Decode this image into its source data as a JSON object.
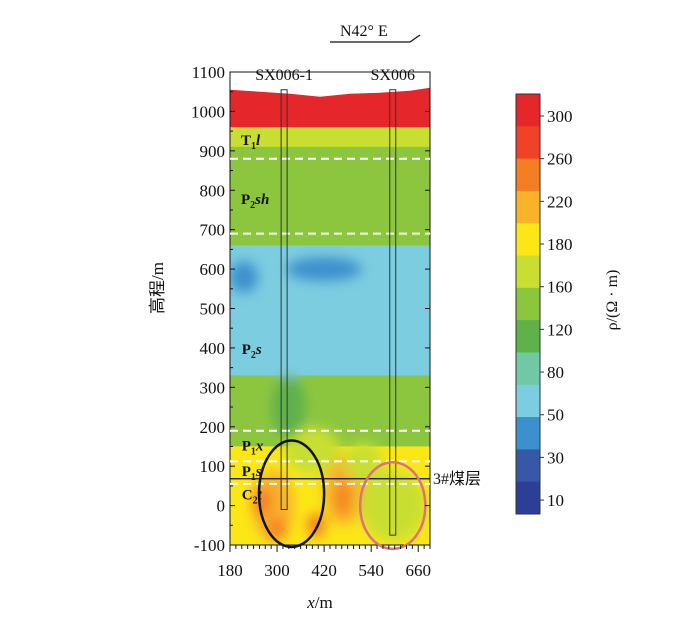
{
  "chart_data": {
    "type": "heatmap",
    "orientation": {
      "label": "N42° E",
      "arrow": "right"
    },
    "x_axis": {
      "label_var": "x",
      "label_unit": "/m",
      "range": [
        180,
        690
      ],
      "ticks": [
        "180",
        "300",
        "420",
        "540",
        "660"
      ],
      "tick_values": [
        180,
        300,
        420,
        540,
        660
      ]
    },
    "y_axis": {
      "label": "高程/m",
      "range": [
        -100,
        1100
      ],
      "ticks": [
        "1100",
        "1000",
        "900",
        "800",
        "700",
        "600",
        "500",
        "400",
        "300",
        "200",
        "100",
        "0",
        "-100"
      ],
      "tick_values": [
        1100,
        1000,
        900,
        800,
        700,
        600,
        500,
        400,
        300,
        200,
        100,
        0,
        -100
      ]
    },
    "boreholes": [
      {
        "name": "SX006-1",
        "x": 318,
        "top": 1055,
        "bottom": -10
      },
      {
        "name": "SX006",
        "x": 595,
        "top": 1055,
        "bottom": -75
      }
    ],
    "boundaries": [
      {
        "elevation": 880,
        "style": "dashed"
      },
      {
        "elevation": 690,
        "style": "dashed"
      },
      {
        "elevation": 190,
        "style": "dashed"
      },
      {
        "elevation": 112,
        "style": "dashed"
      },
      {
        "elevation": 55,
        "style": "dashed"
      },
      {
        "elevation": 68,
        "style": "solid",
        "label": "3#煤层"
      }
    ],
    "strata_labels": [
      {
        "base": "T",
        "sub": "1",
        "tail": "l",
        "x": 208,
        "y": 915
      },
      {
        "base": "P",
        "sub": "2",
        "tail": "sh",
        "x": 208,
        "y": 765
      },
      {
        "base": "P",
        "sub": "2",
        "tail": "s",
        "x": 210,
        "y": 385
      },
      {
        "base": "P",
        "sub": "1",
        "tail": "x",
        "x": 210,
        "y": 140
      },
      {
        "base": "P",
        "sub": "1",
        "tail": "s",
        "x": 210,
        "y": 75
      },
      {
        "base": "C",
        "sub": "2",
        "tail": "t",
        "x": 210,
        "y": 15
      }
    ],
    "ellipses": [
      {
        "cx": 337,
        "cy": 30,
        "rx": 83,
        "ry": 135,
        "color": "#111111"
      },
      {
        "cx": 595,
        "cy": 0,
        "rx": 83,
        "ry": 110,
        "color": "#e0707a"
      }
    ],
    "colorbar": {
      "label": "ρ/(Ω · m)",
      "levels": [
        "300",
        "260",
        "220",
        "180",
        "160",
        "120",
        "80",
        "50",
        "30",
        "10"
      ],
      "colors": [
        "#e5262a",
        "#f04226",
        "#f57e25",
        "#f9b22a",
        "#fbe716",
        "#c8df31",
        "#8cc63f",
        "#5fb14b",
        "#71c8a4",
        "#7ccde0",
        "#3c90cd",
        "#3658a6",
        "#2c3e96"
      ]
    },
    "zones": [
      {
        "top": 1055,
        "bottom": 950,
        "color": "#e5262a"
      },
      {
        "top": 950,
        "bottom": 900,
        "color": "#c8df31"
      },
      {
        "top": 900,
        "bottom": 650,
        "color": "#8cc63f"
      },
      {
        "top": 650,
        "bottom": 320,
        "color": "#7ccde0"
      },
      {
        "top": 320,
        "bottom": 140,
        "color": "#8cc63f"
      },
      {
        "top": 140,
        "bottom": -100,
        "color": "#fbe716"
      }
    ]
  }
}
